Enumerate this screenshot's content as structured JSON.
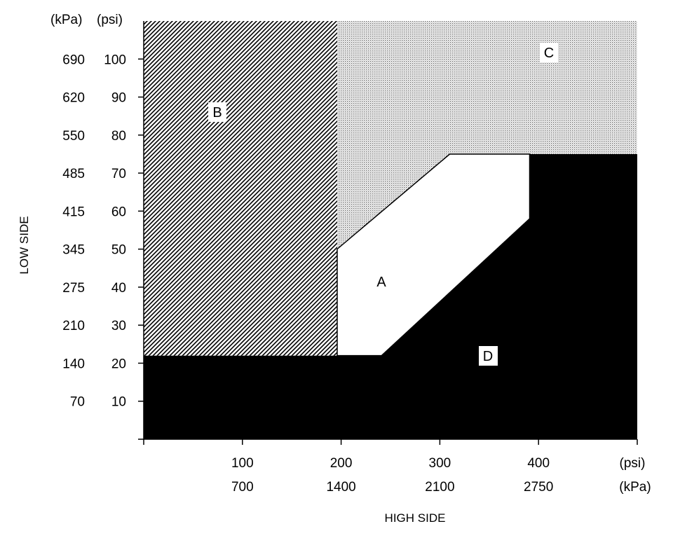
{
  "y_axis": {
    "title": "LOW SIDE",
    "kpa_unit": "(kPa)",
    "psi_unit": "(psi)",
    "kpa_ticks": [
      "690",
      "620",
      "550",
      "485",
      "415",
      "345",
      "275",
      "210",
      "140",
      "70"
    ],
    "psi_ticks": [
      "100",
      "90",
      "80",
      "70",
      "60",
      "50",
      "40",
      "30",
      "20",
      "10"
    ],
    "psi_values": [
      100,
      90,
      80,
      70,
      60,
      50,
      40,
      30,
      20,
      10
    ],
    "range_psi": [
      0,
      110
    ]
  },
  "x_axis": {
    "title": "HIGH SIDE",
    "psi_unit": "(psi)",
    "kpa_unit": "(kPa)",
    "psi_ticks": [
      "100",
      "200",
      "300",
      "400"
    ],
    "kpa_ticks": [
      "700",
      "1400",
      "2100",
      "2750"
    ],
    "psi_values": [
      100,
      200,
      300,
      400
    ],
    "range_psi": [
      0,
      500
    ]
  },
  "regions": {
    "A": {
      "label": "A",
      "fill": "#ffffff",
      "polygon_psi": [
        [
          196,
          22
        ],
        [
          241,
          22
        ],
        [
          391,
          58
        ],
        [
          391,
          75
        ],
        [
          310,
          75
        ],
        [
          196,
          50
        ]
      ]
    },
    "B": {
      "label": "B",
      "pattern": "diagonal-hatch",
      "rect_psi": [
        0,
        22,
        196,
        110
      ]
    },
    "C": {
      "label": "C",
      "pattern": "dotted",
      "polygon_psi": [
        [
          196,
          50
        ],
        [
          310,
          75
        ],
        [
          500,
          75
        ],
        [
          500,
          110
        ],
        [
          196,
          110
        ]
      ]
    },
    "D": {
      "label": "D",
      "fill": "#000000",
      "polygon_psi": [
        [
          0,
          0
        ],
        [
          500,
          0
        ],
        [
          500,
          75
        ],
        [
          391,
          75
        ],
        [
          391,
          58
        ],
        [
          241,
          22
        ],
        [
          0,
          22
        ]
      ]
    }
  },
  "colors": {
    "ink": "#000000",
    "paper": "#ffffff",
    "dot_gray": "#9a9a9a"
  }
}
